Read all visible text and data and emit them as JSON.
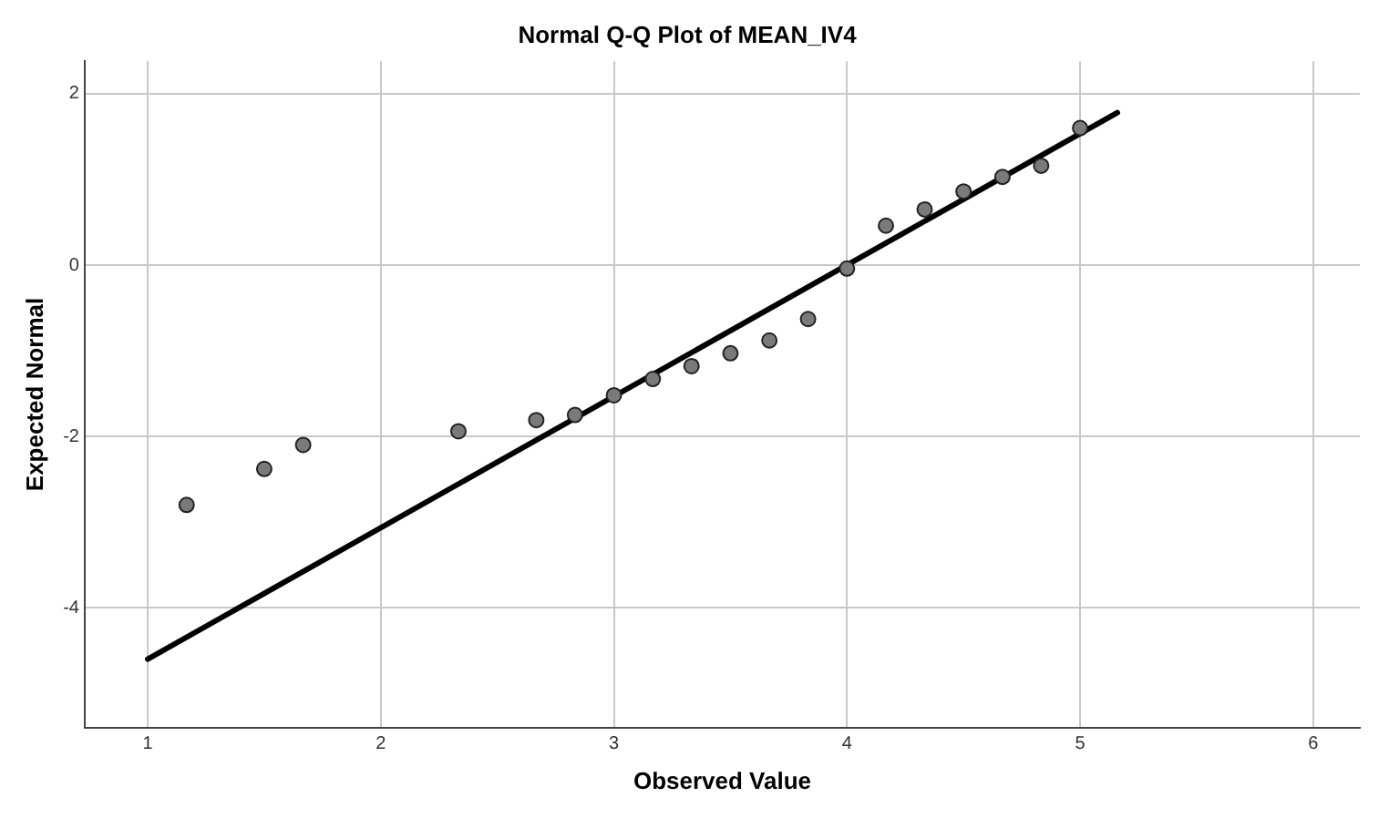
{
  "chart_data": {
    "type": "scatter",
    "title": "Normal Q-Q Plot of MEAN_IV4",
    "xlabel": "Observed Value",
    "ylabel": "Expected Normal",
    "series": [
      {
        "color": "#7a7a7a",
        "marker": "circle",
        "x": [
          1.167,
          1.5,
          1.667,
          2.333,
          2.667,
          2.833,
          3,
          3.167,
          3.333,
          3.5,
          3.667,
          3.833,
          4,
          4.167,
          4.333,
          4.5,
          4.667,
          4.833,
          5
        ],
        "values": [
          -2.8,
          -2.38,
          -2.1,
          -1.94,
          -1.81,
          -1.75,
          -1.52,
          -1.33,
          -1.18,
          -1.03,
          -0.88,
          -0.63,
          -0.04,
          0.46,
          0.65,
          0.86,
          1.03,
          1.16,
          1.6
        ]
      },
      {
        "type": "line",
        "color": "#000000",
        "marker": "none",
        "line_style": "solid",
        "x": [
          1,
          5.16
        ],
        "values": [
          -4.6,
          1.78
        ]
      }
    ],
    "xlim": [
      0.73,
      6.2
    ],
    "xticks": [
      1,
      2,
      3,
      4,
      5,
      6
    ],
    "ylim": [
      -5.4,
      2.38
    ],
    "yticks": [
      -4,
      -2,
      0,
      2
    ],
    "grid": true,
    "legend": false
  }
}
